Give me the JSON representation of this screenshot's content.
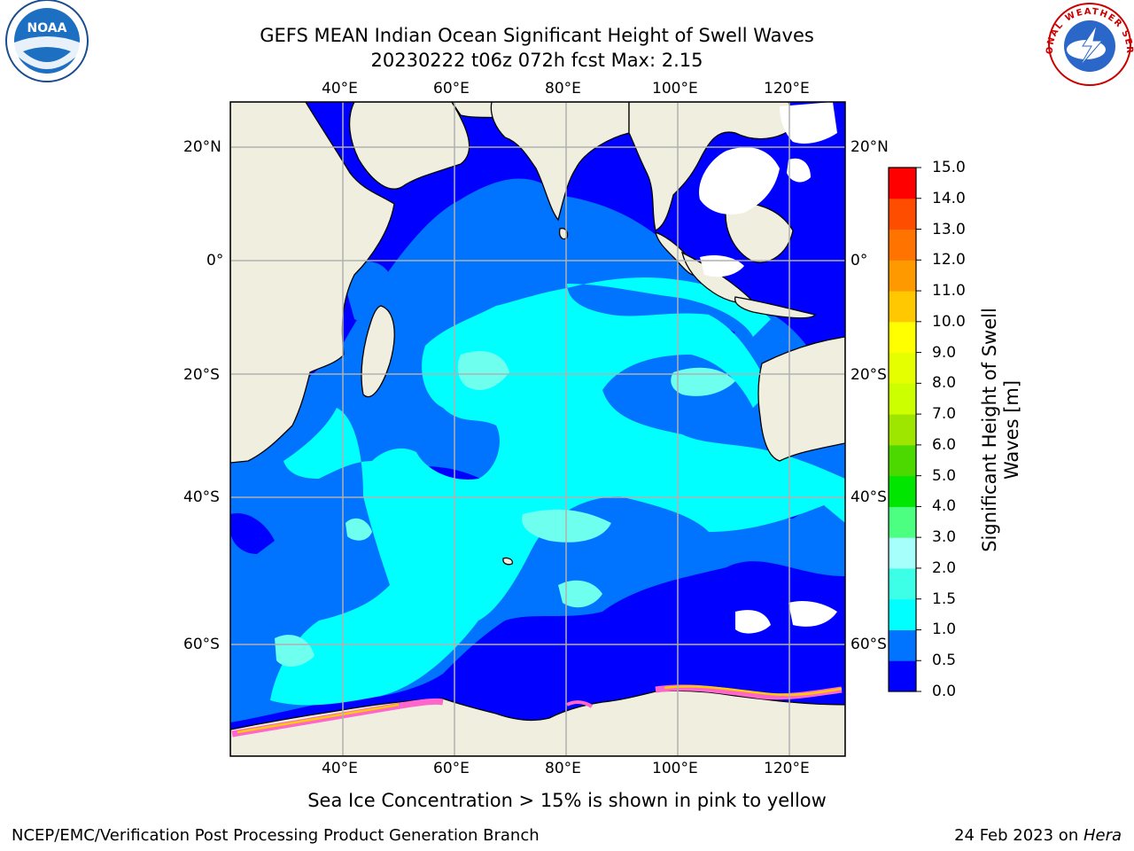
{
  "title": {
    "line1": "GEFS MEAN Indian Ocean Significant Height of Swell Waves",
    "line2": "20230222 t06z 072h fcst   Max: 2.15"
  },
  "axes": {
    "lon_ticks": [
      "40°E",
      "60°E",
      "80°E",
      "100°E",
      "120°E"
    ],
    "lat_ticks": [
      "20°N",
      "0°",
      "20°S",
      "40°S",
      "60°S"
    ]
  },
  "colorbar": {
    "label_line1": "Significant Height of Swell",
    "label_line2": "Waves [m]",
    "ticks": [
      "0.0",
      "0.5",
      "1.0",
      "1.5",
      "2.0",
      "3.0",
      "4.0",
      "5.0",
      "6.0",
      "7.0",
      "8.0",
      "9.0",
      "10.0",
      "11.0",
      "12.0",
      "13.0",
      "14.0",
      "15.0"
    ],
    "colors": [
      "#0000ff",
      "#0073ff",
      "#00ffff",
      "#3dffe8",
      "#a6fffa",
      "#4dff80",
      "#00e600",
      "#4cd900",
      "#9ee600",
      "#ccff00",
      "#e6ff00",
      "#ffff00",
      "#ffc800",
      "#ff9900",
      "#ff7300",
      "#ff4d00",
      "#ff0000"
    ]
  },
  "note": "Sea Ice Concentration > 15% is shown in pink to yellow",
  "footer": {
    "left": "NCEP/EMC/Verification Post Processing Product Generation Branch",
    "date": "24 Feb 2023 on ",
    "host": "Hera"
  },
  "logos": {
    "noaa_text": "NOAA",
    "nws_text": "NATIONAL WEATHER SERVICE"
  }
}
